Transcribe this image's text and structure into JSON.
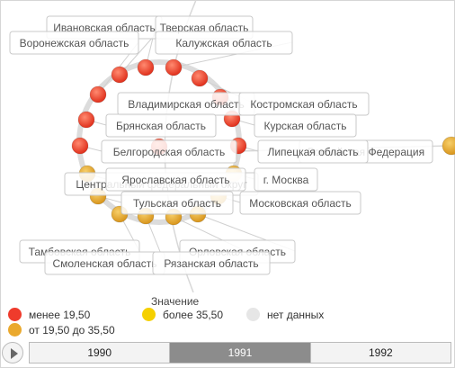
{
  "chart_data": {
    "type": "bubble-tree",
    "root": "Российская Федерация",
    "branch": "Центральный федеральный округ",
    "nodes": [
      {
        "name": "Ивановская область",
        "category": "less"
      },
      {
        "name": "Тверская область",
        "category": "less"
      },
      {
        "name": "Воронежская область",
        "category": "less"
      },
      {
        "name": "Калужская область",
        "category": "less"
      },
      {
        "name": "Владимирская область",
        "category": "less"
      },
      {
        "name": "Костромская область",
        "category": "less"
      },
      {
        "name": "Брянская область",
        "category": "less"
      },
      {
        "name": "Курская область",
        "category": "less"
      },
      {
        "name": "Белгородская область",
        "category": "less"
      },
      {
        "name": "Липецкая область",
        "category": "less"
      },
      {
        "name": "Ярославская область",
        "category": "mid"
      },
      {
        "name": "г. Москва",
        "category": "mid"
      },
      {
        "name": "Тульская область",
        "category": "mid"
      },
      {
        "name": "Московская область",
        "category": "mid"
      },
      {
        "name": "Тамбовская область",
        "category": "mid"
      },
      {
        "name": "Орловская область",
        "category": "mid"
      },
      {
        "name": "Смоленская область",
        "category": "mid"
      },
      {
        "name": "Рязанская область",
        "category": "mid"
      }
    ],
    "legend": {
      "title": "Значение",
      "items": [
        {
          "key": "less",
          "label": "менее 19,50",
          "color": "#ef3b2c"
        },
        {
          "key": "high",
          "label": "более 35,50",
          "color": "#f5d000"
        },
        {
          "key": "nodata",
          "label": "нет данных",
          "color": "#e6e6e6"
        },
        {
          "key": "mid",
          "label": "от 19,50 до 35,50",
          "color": "#eaa92e"
        }
      ]
    }
  },
  "timeline": {
    "years": [
      "1990",
      "1991",
      "1992"
    ],
    "active": "1991"
  },
  "colors": {
    "less": "#ef3b2c",
    "mid": "#eaa92e",
    "high": "#f5d000",
    "nodata": "#e6e6e6",
    "active_year_bg": "#8c8c8c"
  }
}
